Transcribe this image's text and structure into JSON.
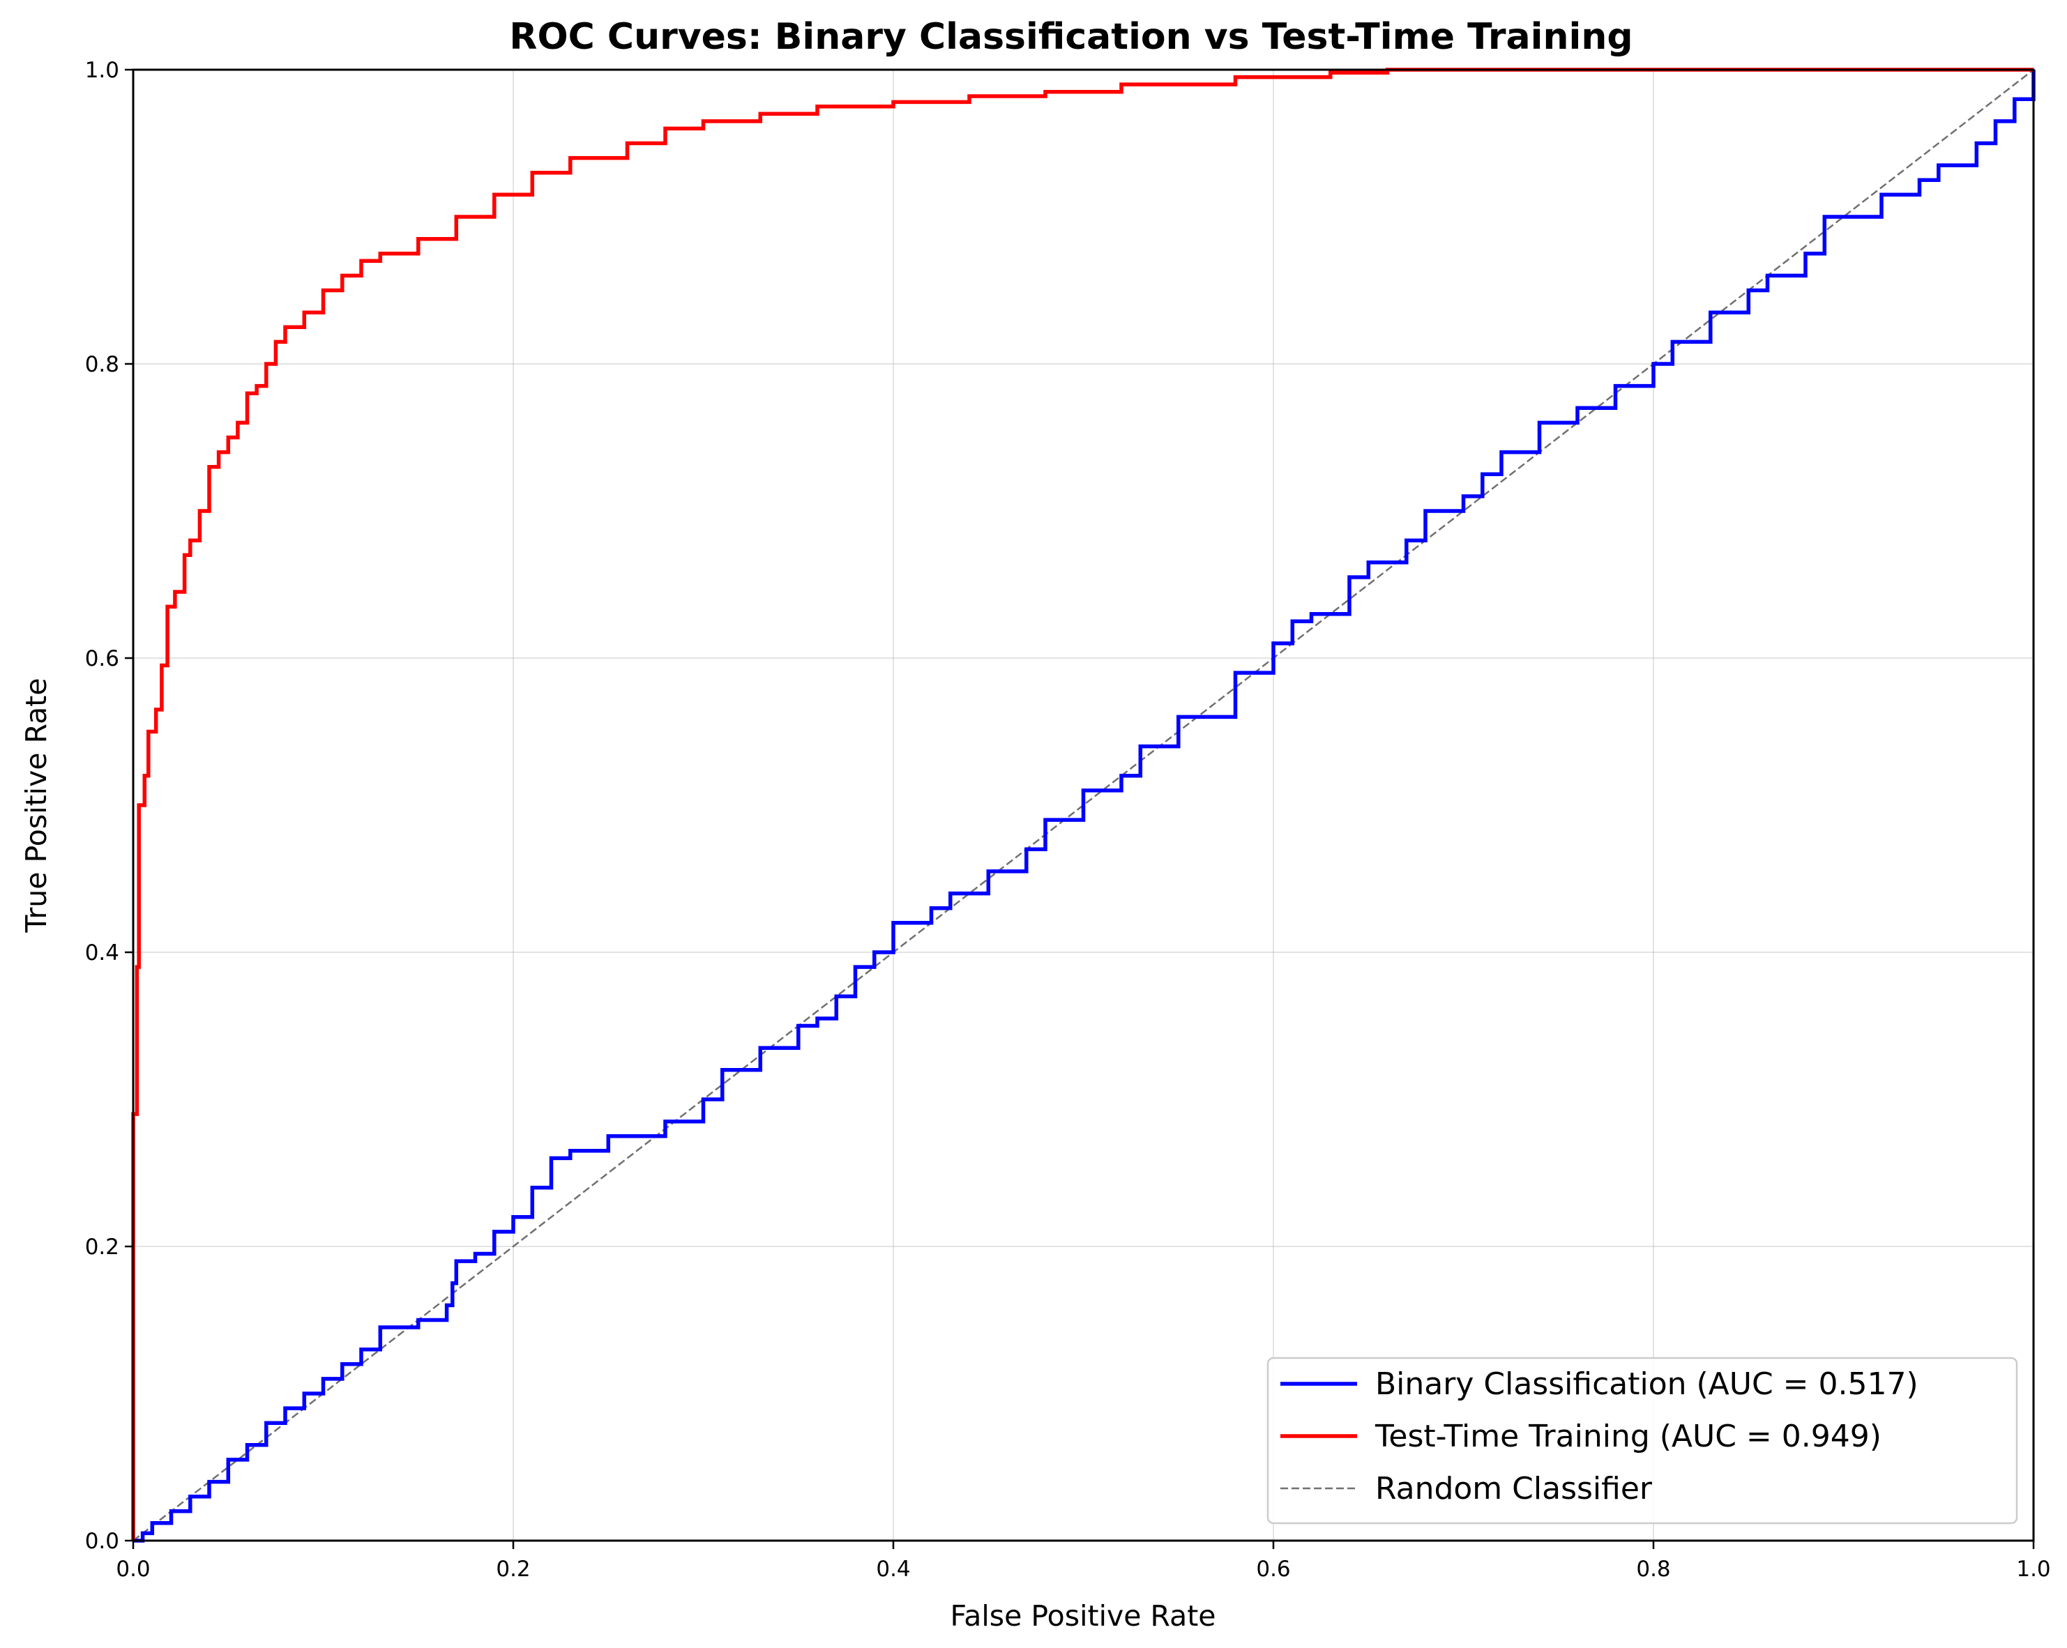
{
  "chart_data": {
    "type": "line",
    "title": "ROC Curves: Binary Classification vs Test-Time Training",
    "xlabel": "False Positive Rate",
    "ylabel": "True Positive Rate",
    "xlim": [
      0,
      1
    ],
    "ylim": [
      0,
      1
    ],
    "xticks": [
      "0.0",
      "0.2",
      "0.4",
      "0.6",
      "0.8",
      "1.0"
    ],
    "yticks": [
      "0.0",
      "0.2",
      "0.4",
      "0.6",
      "0.8",
      "1.0"
    ],
    "grid": true,
    "legend_position": "lower right",
    "series": [
      {
        "name": "Binary Classification (AUC = 0.517)",
        "color": "#0000ff",
        "style": "solid",
        "x": [
          0.0,
          0.005,
          0.01,
          0.02,
          0.03,
          0.04,
          0.05,
          0.06,
          0.07,
          0.08,
          0.09,
          0.1,
          0.11,
          0.12,
          0.13,
          0.15,
          0.165,
          0.168,
          0.17,
          0.18,
          0.19,
          0.2,
          0.21,
          0.22,
          0.23,
          0.25,
          0.28,
          0.3,
          0.31,
          0.33,
          0.35,
          0.36,
          0.37,
          0.38,
          0.39,
          0.4,
          0.42,
          0.43,
          0.45,
          0.47,
          0.48,
          0.5,
          0.52,
          0.53,
          0.55,
          0.58,
          0.6,
          0.61,
          0.62,
          0.64,
          0.65,
          0.67,
          0.68,
          0.7,
          0.71,
          0.72,
          0.74,
          0.76,
          0.78,
          0.8,
          0.81,
          0.83,
          0.85,
          0.86,
          0.88,
          0.89,
          0.92,
          0.94,
          0.95,
          0.97,
          0.98,
          0.99,
          1.0
        ],
        "y": [
          0.0,
          0.005,
          0.012,
          0.02,
          0.03,
          0.04,
          0.055,
          0.065,
          0.08,
          0.09,
          0.1,
          0.11,
          0.12,
          0.13,
          0.145,
          0.15,
          0.16,
          0.175,
          0.19,
          0.195,
          0.21,
          0.22,
          0.24,
          0.26,
          0.265,
          0.275,
          0.285,
          0.3,
          0.32,
          0.335,
          0.35,
          0.355,
          0.37,
          0.39,
          0.4,
          0.42,
          0.43,
          0.44,
          0.455,
          0.47,
          0.49,
          0.51,
          0.52,
          0.54,
          0.56,
          0.59,
          0.61,
          0.625,
          0.63,
          0.655,
          0.665,
          0.68,
          0.7,
          0.71,
          0.725,
          0.74,
          0.76,
          0.77,
          0.785,
          0.8,
          0.815,
          0.835,
          0.85,
          0.86,
          0.875,
          0.9,
          0.915,
          0.925,
          0.935,
          0.95,
          0.965,
          0.98,
          1.0
        ]
      },
      {
        "name": "Test-Time Training (AUC = 0.949)",
        "color": "#ff0000",
        "style": "solid",
        "x": [
          0.0,
          0.0,
          0.002,
          0.003,
          0.006,
          0.008,
          0.012,
          0.015,
          0.018,
          0.022,
          0.027,
          0.03,
          0.035,
          0.04,
          0.045,
          0.05,
          0.055,
          0.06,
          0.065,
          0.07,
          0.075,
          0.08,
          0.09,
          0.1,
          0.11,
          0.12,
          0.13,
          0.15,
          0.17,
          0.19,
          0.21,
          0.23,
          0.26,
          0.28,
          0.3,
          0.33,
          0.36,
          0.4,
          0.44,
          0.48,
          0.52,
          0.58,
          0.63,
          0.66,
          0.7,
          0.75,
          0.85,
          1.0
        ],
        "y": [
          0.0,
          0.29,
          0.39,
          0.5,
          0.52,
          0.55,
          0.565,
          0.595,
          0.635,
          0.645,
          0.67,
          0.68,
          0.7,
          0.73,
          0.74,
          0.75,
          0.76,
          0.78,
          0.785,
          0.8,
          0.815,
          0.825,
          0.835,
          0.85,
          0.86,
          0.87,
          0.875,
          0.885,
          0.9,
          0.915,
          0.93,
          0.94,
          0.95,
          0.96,
          0.965,
          0.97,
          0.975,
          0.978,
          0.982,
          0.985,
          0.99,
          0.995,
          0.998,
          1.0,
          1.0,
          1.0,
          1.0,
          1.0
        ]
      },
      {
        "name": "Random Classifier",
        "color": "#707070",
        "style": "dashed",
        "x": [
          0,
          1
        ],
        "y": [
          0,
          1
        ]
      }
    ]
  }
}
